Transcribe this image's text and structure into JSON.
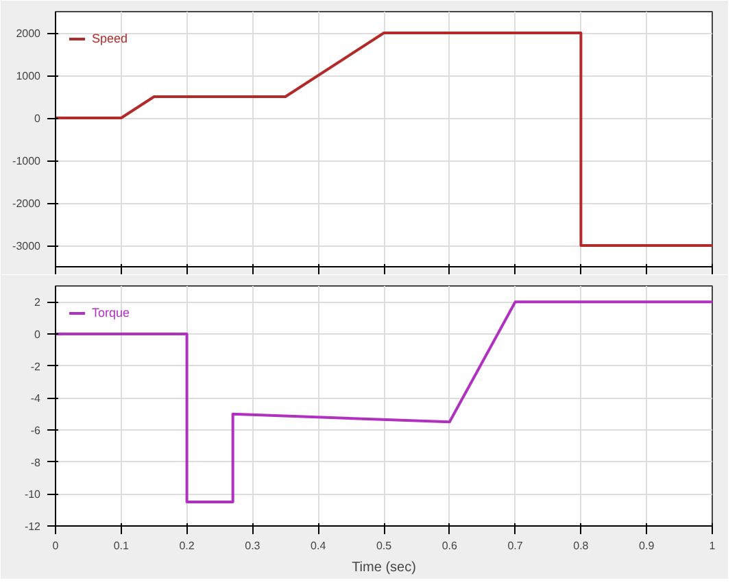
{
  "chart_data": [
    {
      "type": "line",
      "x": [
        0,
        0.1,
        0.15,
        0.35,
        0.5,
        0.8,
        0.8,
        1
      ],
      "xlim": [
        0,
        1
      ],
      "xticks": [
        {
          "value": 0,
          "label": null
        },
        {
          "value": 0.1,
          "label": null
        },
        {
          "value": 0.2,
          "label": null
        },
        {
          "value": 0.3,
          "label": null
        },
        {
          "value": 0.4,
          "label": null
        },
        {
          "value": 0.5,
          "label": null
        },
        {
          "value": 0.6,
          "label": null
        },
        {
          "value": 0.7,
          "label": null
        },
        {
          "value": 0.8,
          "label": null
        },
        {
          "value": 0.9,
          "label": null
        },
        {
          "value": 1,
          "label": null
        }
      ],
      "ylim": [
        -3500,
        2500
      ],
      "yticks": [
        -3000,
        -2000,
        -1000,
        0,
        1000,
        2000
      ],
      "tick_labels": "y",
      "grid": true,
      "legend": "top left",
      "series": [
        {
          "name": "Speed",
          "color": "#b22a2a",
          "values": [
            0,
            0,
            500,
            500,
            2000,
            2000,
            -3000,
            -3000
          ]
        }
      ]
    },
    {
      "type": "line",
      "x": [
        0,
        0.2,
        0.2,
        0.27,
        0.27,
        0.6,
        0.7,
        1
      ],
      "xlim": [
        0,
        1
      ],
      "xticks": [
        0,
        {
          "value": 0.1,
          "label": "0.1"
        },
        {
          "value": 0.2,
          "label": "0.2"
        },
        {
          "value": 0.3,
          "label": "0.3"
        },
        {
          "value": 0.4,
          "label": "0.4"
        },
        {
          "value": 0.5,
          "label": "0.5"
        },
        {
          "value": 0.6,
          "label": "0.6"
        },
        {
          "value": 0.7,
          "label": "0.7"
        },
        {
          "value": 0.8,
          "label": "0.8"
        },
        {
          "value": 0.9,
          "label": "0.9"
        },
        1
      ],
      "ylim": [
        -12,
        3
      ],
      "yticks": [
        -12,
        -10,
        -8,
        -6,
        -4,
        -2,
        0,
        2
      ],
      "xlabel": "Time (sec)",
      "grid": true,
      "legend": "top left",
      "series": [
        {
          "name": "Torque",
          "color": "#b030c0",
          "values": [
            0,
            0,
            -10.5,
            -10.5,
            -5,
            -5.5,
            2,
            2
          ]
        }
      ]
    }
  ]
}
